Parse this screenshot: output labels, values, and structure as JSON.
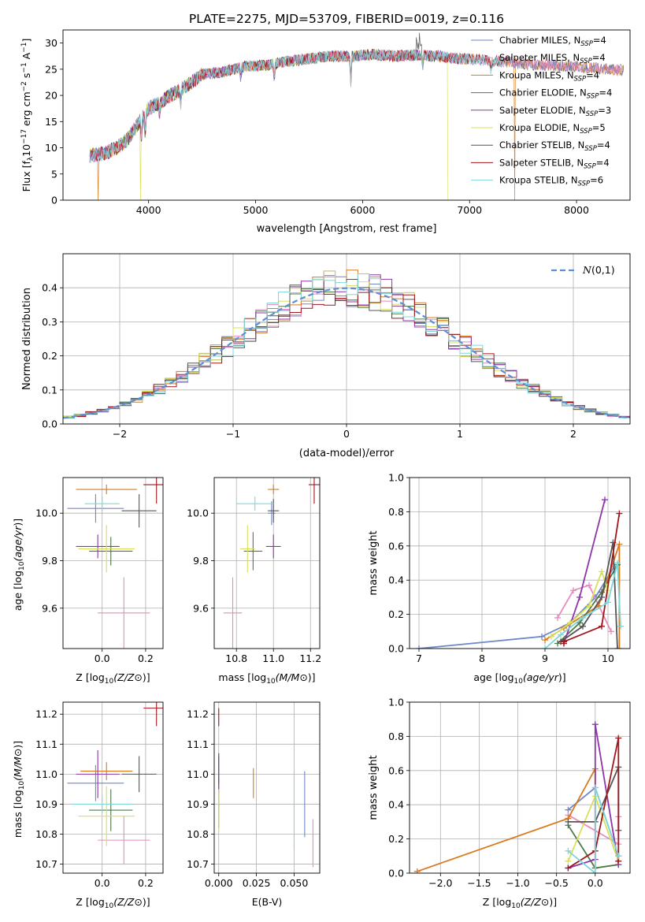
{
  "figure_title": "PLATE=2275, MJD=53709, FIBERID=0019, z=0.116",
  "colors": {
    "Chabrier MILES": "#6f87c8",
    "Salpeter MILES": "#e88bbd",
    "Kroupa MILES": "#d87a1e",
    "Chabrier ELODIE": "#4a7a4a",
    "Salpeter ELODIE": "#8e35a8",
    "Kroupa ELODIE": "#d8e05a",
    "Chabrier STELIB": "#555555",
    "Salpeter STELIB": "#a0161c",
    "Kroupa STELIB": "#7fd6da",
    "gaussian": "#5b8fd6"
  },
  "chart_data": [
    {
      "id": "spectrum",
      "type": "line",
      "xlabel": "wavelength [Angstrom, rest frame]",
      "ylabel": "Flux [f_λ10^-17 erg cm^-2 s^-1 A^-1]",
      "xlim": [
        3200,
        8500
      ],
      "ylim": [
        0,
        32.5
      ],
      "xticks": [
        4000,
        5000,
        6000,
        7000,
        8000
      ],
      "yticks": [
        0,
        5,
        10,
        15,
        20,
        25,
        30
      ],
      "legend_position": "upper-right",
      "legend": [
        {
          "name": "Chabrier MILES",
          "nssp": "4"
        },
        {
          "name": "Salpeter MILES",
          "nssp": "4"
        },
        {
          "name": "Kroupa MILES",
          "nssp": "4"
        },
        {
          "name": "Chabrier ELODIE",
          "nssp": "4"
        },
        {
          "name": "Salpeter ELODIE",
          "nssp": "3"
        },
        {
          "name": "Kroupa ELODIE",
          "nssp": "5"
        },
        {
          "name": "Chabrier STELIB",
          "nssp": "4"
        },
        {
          "name": "Salpeter STELIB",
          "nssp": "4"
        },
        {
          "name": "Kroupa STELIB",
          "nssp": "6"
        }
      ],
      "continuum": {
        "x": [
          3450,
          3600,
          3700,
          3800,
          3900,
          4000,
          4100,
          4200,
          4300,
          4400,
          4500,
          4700,
          4900,
          5100,
          5300,
          5500,
          5700,
          5900,
          6100,
          6300,
          6500,
          6700,
          6900,
          7100,
          7300,
          7500,
          7700,
          8000,
          8300,
          8450
        ],
        "y": [
          8.5,
          9.0,
          10.0,
          11.5,
          14.5,
          17.5,
          18.5,
          20.0,
          21.0,
          22.5,
          24.0,
          24.5,
          25.5,
          25.8,
          26.5,
          27.0,
          27.5,
          27.5,
          27.8,
          27.5,
          27.7,
          27.5,
          27.0,
          26.8,
          26.5,
          26.0,
          25.8,
          25.5,
          25.0,
          24.8
        ]
      },
      "dropouts": [
        {
          "series": "Kroupa MILES",
          "x": 3530
        },
        {
          "series": "Kroupa ELODIE",
          "x": 3925
        },
        {
          "series": "Kroupa ELODIE",
          "x": 6800
        },
        {
          "series": "Kroupa MILES",
          "x": 7420
        }
      ]
    },
    {
      "id": "residuals",
      "type": "step",
      "xlabel": "(data-model)/error",
      "ylabel": "Normed distribution",
      "xlim": [
        -2.5,
        2.5
      ],
      "ylim": [
        0,
        0.5
      ],
      "xticks": [
        -2,
        -1,
        0,
        1,
        2
      ],
      "yticks": [
        0.0,
        0.1,
        0.2,
        0.3,
        0.4
      ],
      "grid": true,
      "legend_position": "upper-right",
      "gaussian_label": "N(0,1)",
      "bin_width": 0.1
    },
    {
      "id": "age_vs_Z",
      "type": "errorbar",
      "xlabel": "Z [log10(Z/Z⊙)]",
      "ylabel": "age [log10(age/yr)]",
      "xlim": [
        -0.18,
        0.28
      ],
      "ylim": [
        9.43,
        10.15
      ],
      "xticks": [
        0.0,
        0.2
      ],
      "yticks": [
        9.6,
        9.8,
        10.0
      ],
      "grid": true,
      "points": [
        {
          "series": "Chabrier MILES",
          "x": -0.03,
          "y": 10.02,
          "xerr": 0.13,
          "yerr": 0.06
        },
        {
          "series": "Salpeter MILES",
          "x": 0.1,
          "y": 9.58,
          "xerr": 0.12,
          "yerr": 0.15
        },
        {
          "series": "Kroupa MILES",
          "x": 0.02,
          "y": 10.1,
          "xerr": 0.14,
          "yerr": 0.02
        },
        {
          "series": "Chabrier ELODIE",
          "x": 0.04,
          "y": 9.84,
          "xerr": 0.1,
          "yerr": 0.06
        },
        {
          "series": "Salpeter ELODIE",
          "x": -0.02,
          "y": 9.86,
          "xerr": 0.1,
          "yerr": 0.05
        },
        {
          "series": "Kroupa ELODIE",
          "x": 0.02,
          "y": 9.85,
          "xerr": 0.13,
          "yerr": 0.1
        },
        {
          "series": "Chabrier STELIB",
          "x": 0.17,
          "y": 10.01,
          "xerr": 0.08,
          "yerr": 0.07
        },
        {
          "series": "Salpeter STELIB",
          "x": 0.25,
          "y": 10.12,
          "xerr": 0.06,
          "yerr": 0.08
        },
        {
          "series": "Kroupa STELIB",
          "x": 0.0,
          "y": 10.04,
          "xerr": 0.08,
          "yerr": 0.03
        }
      ]
    },
    {
      "id": "age_vs_mass",
      "type": "errorbar",
      "xlabel": "mass [log10(M/M⊙)]",
      "ylabel": "",
      "xlim": [
        10.68,
        11.25
      ],
      "ylim": [
        9.43,
        10.15
      ],
      "xticks": [
        10.8,
        11.0,
        11.2
      ],
      "yticks": [
        9.6,
        9.8,
        10.0
      ],
      "grid": true,
      "points": [
        {
          "series": "Chabrier MILES",
          "x": 10.99,
          "y": 10.0,
          "xerr": 0.02,
          "yerr": 0.05
        },
        {
          "series": "Salpeter MILES",
          "x": 10.78,
          "y": 9.58,
          "xerr": 0.05,
          "yerr": 0.15
        },
        {
          "series": "Kroupa MILES",
          "x": 11.0,
          "y": 10.1,
          "xerr": 0.03,
          "yerr": 0.02
        },
        {
          "series": "Chabrier ELODIE",
          "x": 10.89,
          "y": 9.84,
          "xerr": 0.05,
          "yerr": 0.08
        },
        {
          "series": "Salpeter ELODIE",
          "x": 11.0,
          "y": 9.86,
          "xerr": 0.04,
          "yerr": 0.05
        },
        {
          "series": "Kroupa ELODIE",
          "x": 10.86,
          "y": 9.85,
          "xerr": 0.04,
          "yerr": 0.1
        },
        {
          "series": "Chabrier STELIB",
          "x": 11.0,
          "y": 10.01,
          "xerr": 0.03,
          "yerr": 0.05
        },
        {
          "series": "Salpeter STELIB",
          "x": 11.22,
          "y": 10.12,
          "xerr": 0.03,
          "yerr": 0.08
        },
        {
          "series": "Kroupa STELIB",
          "x": 10.9,
          "y": 10.04,
          "xerr": 0.1,
          "yerr": 0.03
        }
      ]
    },
    {
      "id": "mass_weight_vs_age",
      "type": "line",
      "xlabel": "age [log10(age/yr)]",
      "ylabel": "mass weight",
      "xlim": [
        6.85,
        10.35
      ],
      "ylim": [
        0,
        1.0
      ],
      "xticks": [
        7,
        8,
        9,
        10
      ],
      "yticks": [
        0.0,
        0.2,
        0.4,
        0.6,
        0.8,
        1.0
      ],
      "grid": true,
      "series": [
        {
          "name": "Chabrier MILES",
          "x": [
            7.0,
            8.95,
            9.4,
            9.8,
            10.1
          ],
          "y": [
            0.0,
            0.07,
            0.15,
            0.3,
            0.48
          ]
        },
        {
          "name": "Salpeter MILES",
          "x": [
            9.2,
            9.45,
            9.7,
            10.05
          ],
          "y": [
            0.18,
            0.34,
            0.37,
            0.1
          ]
        },
        {
          "name": "Kroupa MILES",
          "x": [
            9.0,
            9.3,
            9.85,
            10.18,
            10.18
          ],
          "y": [
            0.05,
            0.12,
            0.25,
            0.61,
            0.0
          ]
        },
        {
          "name": "Chabrier ELODIE",
          "x": [
            9.2,
            9.55,
            9.9,
            10.15
          ],
          "y": [
            0.03,
            0.15,
            0.33,
            0.49
          ]
        },
        {
          "name": "Salpeter ELODIE",
          "x": [
            9.3,
            9.55,
            9.95
          ],
          "y": [
            0.03,
            0.3,
            0.87
          ]
        },
        {
          "name": "Kroupa ELODIE",
          "x": [
            9.1,
            9.4,
            9.7,
            9.9,
            10.0
          ],
          "y": [
            0.07,
            0.15,
            0.25,
            0.45,
            0.34
          ]
        },
        {
          "name": "Chabrier STELIB",
          "x": [
            9.25,
            9.6,
            9.9,
            10.08,
            10.15
          ],
          "y": [
            0.04,
            0.13,
            0.3,
            0.62,
            0.0
          ]
        },
        {
          "name": "Salpeter STELIB",
          "x": [
            9.3,
            9.3,
            9.9,
            10.18
          ],
          "y": [
            0.03,
            0.04,
            0.13,
            0.79
          ]
        },
        {
          "name": "Kroupa STELIB",
          "x": [
            9.0,
            9.25,
            9.6,
            10.0,
            10.15,
            10.2
          ],
          "y": [
            0.0,
            0.08,
            0.18,
            0.27,
            0.5,
            0.13
          ]
        }
      ]
    },
    {
      "id": "mass_vs_Z",
      "type": "errorbar",
      "xlabel": "Z [log10(Z/Z⊙)]",
      "ylabel": "mass [log10(M/M⊙)]",
      "xlim": [
        -0.18,
        0.28
      ],
      "ylim": [
        10.67,
        11.24
      ],
      "xticks": [
        0.0,
        0.2
      ],
      "yticks": [
        10.7,
        10.8,
        10.9,
        11.0,
        11.1,
        11.2
      ],
      "grid": true,
      "points": [
        {
          "series": "Chabrier MILES",
          "x": -0.03,
          "y": 10.97,
          "xerr": 0.13,
          "yerr": 0.06
        },
        {
          "series": "Salpeter MILES",
          "x": 0.1,
          "y": 10.78,
          "xerr": 0.12,
          "yerr": 0.08
        },
        {
          "series": "Kroupa MILES",
          "x": 0.02,
          "y": 11.01,
          "xerr": 0.12,
          "yerr": 0.03
        },
        {
          "series": "Chabrier ELODIE",
          "x": 0.04,
          "y": 10.88,
          "xerr": 0.1,
          "yerr": 0.07
        },
        {
          "series": "Salpeter ELODIE",
          "x": -0.02,
          "y": 11.0,
          "xerr": 0.1,
          "yerr": 0.08
        },
        {
          "series": "Kroupa ELODIE",
          "x": 0.02,
          "y": 10.86,
          "xerr": 0.13,
          "yerr": 0.1
        },
        {
          "series": "Chabrier STELIB",
          "x": 0.17,
          "y": 11.0,
          "xerr": 0.08,
          "yerr": 0.06
        },
        {
          "series": "Salpeter STELIB",
          "x": 0.25,
          "y": 11.22,
          "xerr": 0.06,
          "yerr": 0.06
        },
        {
          "series": "Kroupa STELIB",
          "x": 0.0,
          "y": 10.9,
          "xerr": 0.14,
          "yerr": 0.03
        }
      ]
    },
    {
      "id": "mass_vs_EBV",
      "type": "errorbar",
      "xlabel": "E(B-V)",
      "ylabel": "",
      "xlim": [
        -0.003,
        0.067
      ],
      "ylim": [
        10.67,
        11.24
      ],
      "xticks": [
        0.0,
        0.025,
        0.05
      ],
      "yticks": [
        10.7,
        10.8,
        10.9,
        11.0,
        11.1,
        11.2
      ],
      "grid": true,
      "points": [
        {
          "series": "Chabrier MILES",
          "x": 0.057,
          "y": 10.9,
          "xerr": 0,
          "yerr": 0.11
        },
        {
          "series": "Salpeter MILES",
          "x": 0.0625,
          "y": 10.77,
          "xerr": 0,
          "yerr": 0.08
        },
        {
          "series": "Kroupa MILES",
          "x": 0.023,
          "y": 10.97,
          "xerr": 0,
          "yerr": 0.05
        },
        {
          "series": "Chabrier ELODIE",
          "x": 0.0,
          "y": 10.9,
          "xerr": 0,
          "yerr": 0.08
        },
        {
          "series": "Salpeter ELODIE",
          "x": 0.0,
          "y": 11.0,
          "xerr": 0,
          "yerr": 0.06
        },
        {
          "series": "Kroupa ELODIE",
          "x": 0.0,
          "y": 10.88,
          "xerr": 0,
          "yerr": 0.07
        },
        {
          "series": "Chabrier STELIB",
          "x": 0.0,
          "y": 11.02,
          "xerr": 0,
          "yerr": 0.05
        },
        {
          "series": "Salpeter STELIB",
          "x": 0.0,
          "y": 11.19,
          "xerr": 0,
          "yerr": 0.03
        },
        {
          "series": "Kroupa STELIB",
          "x": 0.05,
          "y": 10.88,
          "xerr": 0,
          "yerr": 0.13
        }
      ]
    },
    {
      "id": "mass_weight_vs_Z",
      "type": "line",
      "xlabel": "Z [log10(Z/Z⊙)]",
      "ylabel": "mass weight",
      "xlim": [
        -2.4,
        0.45
      ],
      "ylim": [
        0,
        1.0
      ],
      "xticks": [
        -2.0,
        -1.5,
        -1.0,
        -0.5,
        0.0
      ],
      "yticks": [
        0.0,
        0.2,
        0.4,
        0.6,
        0.8,
        1.0
      ],
      "grid": true,
      "series": [
        {
          "name": "Chabrier MILES",
          "x": [
            -0.35,
            0.0,
            0.3
          ],
          "y": [
            0.37,
            0.5,
            0.1
          ]
        },
        {
          "name": "Salpeter MILES",
          "x": [
            -0.35,
            0.3,
            0.3
          ],
          "y": [
            0.34,
            0.17,
            0.33
          ]
        },
        {
          "name": "Kroupa MILES",
          "x": [
            -2.3,
            -0.35,
            0.0,
            0.0
          ],
          "y": [
            0.01,
            0.32,
            0.61,
            0.03
          ]
        },
        {
          "name": "Chabrier ELODIE",
          "x": [
            -0.35,
            0.0,
            0.3
          ],
          "y": [
            0.28,
            0.03,
            0.05
          ]
        },
        {
          "name": "Salpeter ELODIE",
          "x": [
            -0.35,
            0.0,
            0.0,
            0.3
          ],
          "y": [
            0.03,
            0.08,
            0.87,
            0.05
          ]
        },
        {
          "name": "Kroupa ELODIE",
          "x": [
            -0.35,
            0.0,
            0.3
          ],
          "y": [
            0.07,
            0.45,
            0.07
          ]
        },
        {
          "name": "Chabrier STELIB",
          "x": [
            -0.35,
            0.0,
            0.3,
            0.3
          ],
          "y": [
            0.3,
            0.3,
            0.62,
            0.25
          ]
        },
        {
          "name": "Salpeter STELIB",
          "x": [
            -0.35,
            0.0,
            0.3,
            0.3
          ],
          "y": [
            0.03,
            0.13,
            0.79,
            0.07
          ]
        },
        {
          "name": "Kroupa STELIB",
          "x": [
            -0.35,
            0.0,
            0.0,
            0.3
          ],
          "y": [
            0.13,
            0.0,
            0.5,
            0.1
          ]
        }
      ]
    }
  ]
}
